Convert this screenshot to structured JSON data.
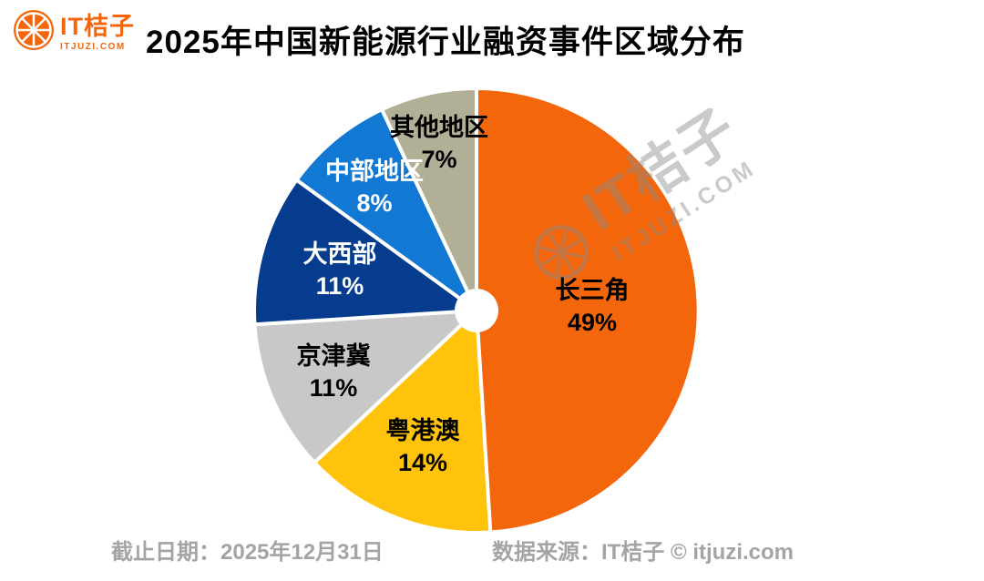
{
  "header": {
    "logo": {
      "name": "IT桔子",
      "domain": "ITJUZI.COM"
    },
    "title": "2025年中国新能源行业融资事件区域分布"
  },
  "chart_data": {
    "type": "pie",
    "title": "2025年中国新能源行业融资事件区域分布",
    "labels": [
      "长三角",
      "粤港澳",
      "京津冀",
      "大西部",
      "中部地区",
      "其他地区"
    ],
    "values": [
      49,
      14,
      11,
      11,
      8,
      7
    ],
    "unit": "%",
    "colors": [
      "#F4660B",
      "#FFC30B",
      "#C8C8C8",
      "#053C8E",
      "#1178D4",
      "#B2AF97"
    ],
    "label_text_colors": [
      "#000000",
      "#000000",
      "#000000",
      "#FFFFFF",
      "#FFFFFF",
      "#000000"
    ],
    "start_angle": "top",
    "direction": "clockwise",
    "donut_hole": true,
    "legend": "none"
  },
  "watermark": {
    "line1": "IT桔子",
    "line2": "ITJUZI.COM"
  },
  "footer": {
    "date": "截止日期：2025年12月31日",
    "source": "数据来源：IT桔子 © itjuzi.com"
  }
}
